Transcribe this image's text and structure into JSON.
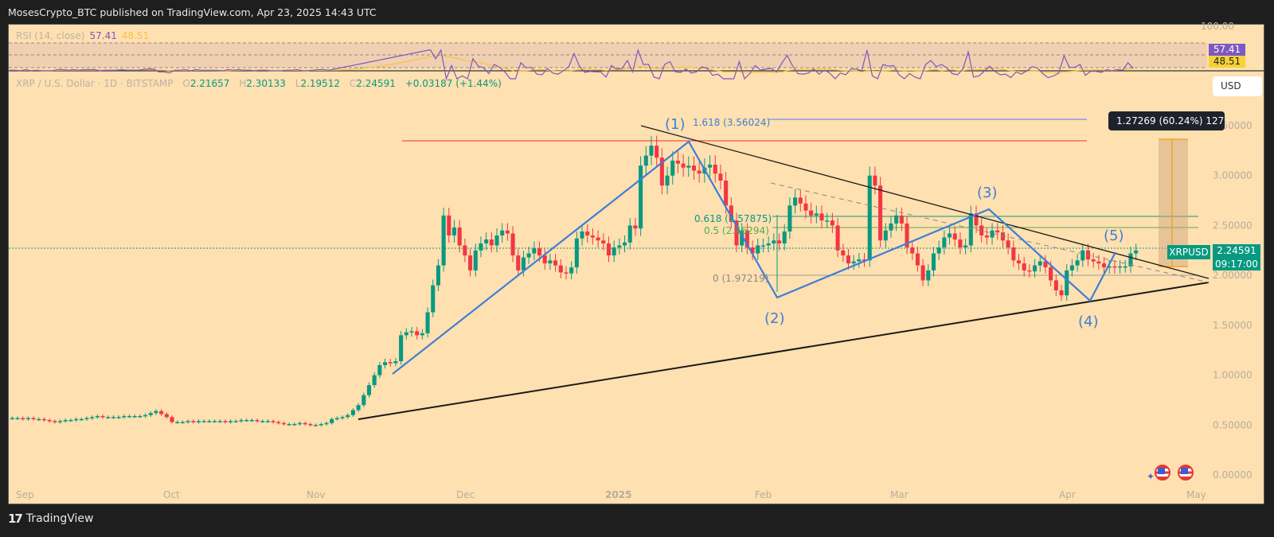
{
  "header": {
    "published": "MosesCrypto_BTC published on TradingView.com, Apr 23, 2025 14:43 UTC"
  },
  "rsi": {
    "label": "RSI (14, close)",
    "value": "57.41",
    "ma_value": "48.51",
    "scale_top": "100.00",
    "colors": {
      "rsi": "#7e57c2",
      "ma": "#f6c343"
    }
  },
  "symbol": {
    "title": "XRP / U.S. Dollar · 1D · BITSTAMP",
    "o_label": "O",
    "o": "2.21657",
    "h_label": "H",
    "h": "2.30133",
    "l_label": "L",
    "l": "2.19512",
    "c_label": "C",
    "c": "2.24591",
    "change": "+0.03187 (+1.44%)"
  },
  "currency": "USD",
  "price_tag": {
    "symbol": "XRPUSD",
    "price": "2.24591",
    "countdown": "09:17:00"
  },
  "measure_tooltip": "1.27269 (60.24%) 127",
  "footer": {
    "brand": "TradingView"
  },
  "chart_data": {
    "type": "candlestick",
    "title": "XRP / U.S. Dollar · 1D · BITSTAMP",
    "ylim": [
      0,
      3.7
    ],
    "y_ticks": [
      "3.50000",
      "3.00000",
      "2.50000",
      "2.00000",
      "1.50000",
      "1.00000",
      "0.50000",
      "0.00000"
    ],
    "x_ticks": [
      "Sep",
      "Oct",
      "Nov",
      "Dec",
      "2025",
      "Feb",
      "Mar",
      "Apr",
      "May"
    ],
    "closes": [
      0.57,
      0.57,
      0.56,
      0.57,
      0.56,
      0.56,
      0.55,
      0.54,
      0.53,
      0.54,
      0.55,
      0.55,
      0.56,
      0.56,
      0.57,
      0.58,
      0.59,
      0.58,
      0.58,
      0.58,
      0.58,
      0.59,
      0.59,
      0.59,
      0.59,
      0.6,
      0.62,
      0.64,
      0.61,
      0.58,
      0.53,
      0.53,
      0.53,
      0.54,
      0.53,
      0.54,
      0.54,
      0.54,
      0.54,
      0.54,
      0.53,
      0.54,
      0.54,
      0.55,
      0.55,
      0.55,
      0.54,
      0.54,
      0.54,
      0.53,
      0.52,
      0.51,
      0.51,
      0.51,
      0.52,
      0.51,
      0.5,
      0.5,
      0.51,
      0.52,
      0.56,
      0.57,
      0.58,
      0.6,
      0.65,
      0.7,
      0.8,
      0.9,
      1.0,
      1.1,
      1.13,
      1.12,
      1.14,
      1.4,
      1.43,
      1.44,
      1.4,
      1.42,
      1.63,
      1.9,
      2.1,
      2.6,
      2.4,
      2.48,
      2.3,
      2.2,
      2.05,
      2.25,
      2.32,
      2.36,
      2.3,
      2.4,
      2.45,
      2.42,
      2.2,
      2.05,
      2.18,
      2.22,
      2.27,
      2.2,
      2.12,
      2.15,
      2.1,
      2.03,
      2.02,
      2.08,
      2.37,
      2.44,
      2.4,
      2.38,
      2.35,
      2.32,
      2.2,
      2.28,
      2.3,
      2.33,
      2.5,
      2.47,
      3.1,
      3.2,
      3.3,
      3.18,
      2.9,
      3.0,
      3.15,
      3.12,
      3.08,
      3.1,
      3.05,
      3.02,
      3.08,
      3.11,
      3.02,
      2.95,
      2.7,
      2.55,
      2.3,
      2.45,
      2.28,
      2.22,
      2.3,
      2.3,
      2.32,
      2.35,
      2.32,
      2.44,
      2.7,
      2.78,
      2.72,
      2.65,
      2.6,
      2.62,
      2.55,
      2.55,
      2.5,
      2.25,
      2.2,
      2.12,
      2.14,
      2.16,
      2.15,
      3.0,
      2.9,
      2.35,
      2.45,
      2.52,
      2.6,
      2.52,
      2.28,
      2.22,
      2.1,
      1.95,
      2.05,
      2.22,
      2.28,
      2.38,
      2.42,
      2.36,
      2.28,
      2.3,
      2.62,
      2.5,
      2.4,
      2.38,
      2.45,
      2.43,
      2.35,
      2.28,
      2.15,
      2.12,
      2.05,
      2.04,
      2.1,
      2.14,
      2.08,
      1.95,
      1.85,
      1.8,
      2.05,
      2.1,
      2.15,
      2.25,
      2.16,
      2.14,
      2.12,
      2.08,
      2.09,
      2.08,
      2.09,
      2.09,
      2.22,
      2.25
    ]
  },
  "annotations": {
    "waves": [
      "(1)",
      "(2)",
      "(3)",
      "(4)",
      "(5)"
    ],
    "fib_ext": "1.618 (3.56024)",
    "fib_618": "0.618 (2.57875)",
    "fib_5": "0.5 (2.46294)",
    "fib_0": "0 (1.97219)"
  }
}
